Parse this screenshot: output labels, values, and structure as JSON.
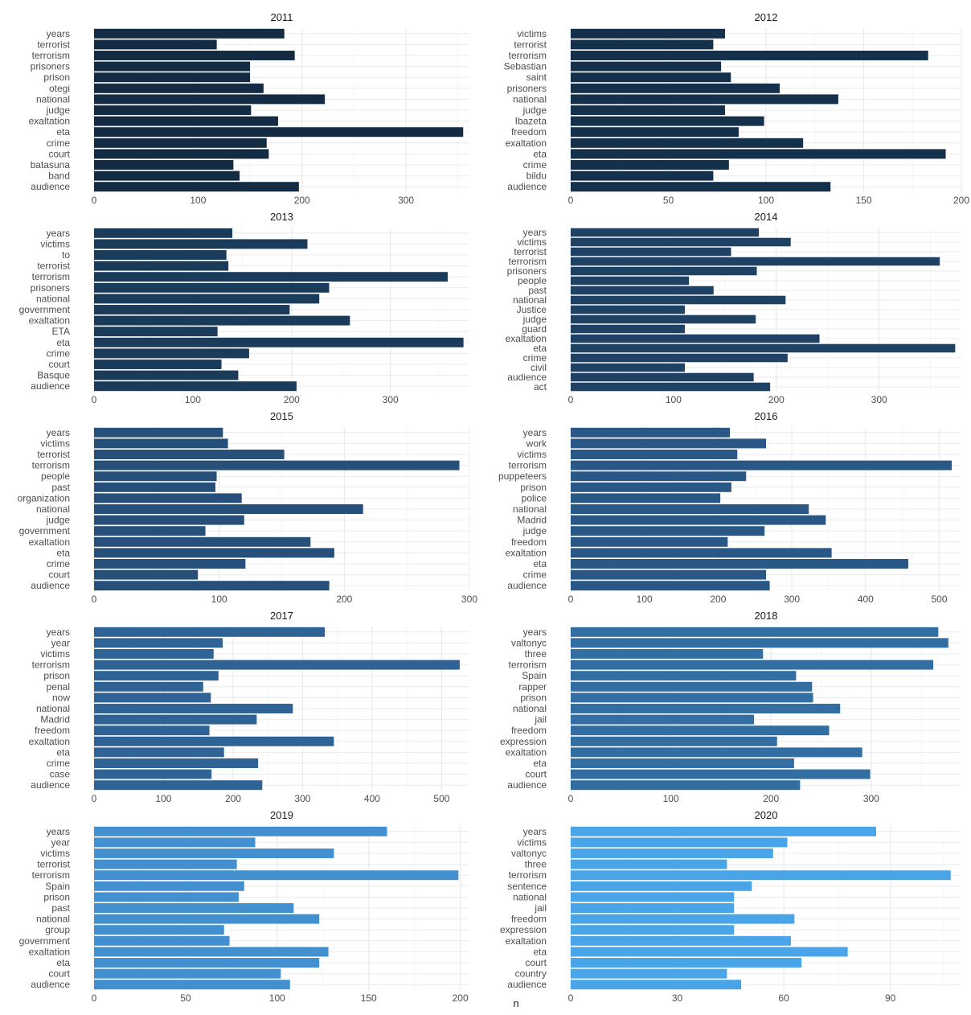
{
  "chart_data": {
    "type": "bar",
    "orientation": "horizontal",
    "layout": "facet grid, 2 columns x 5 rows",
    "xlabel": "n",
    "ylabel": "",
    "grid": true,
    "legend": "none",
    "colors": [
      "#132b43",
      "#15304a",
      "#183552",
      "#1b3b5a",
      "#1e4164",
      "#21476e",
      "#264f79",
      "#2a5886",
      "#2f6395",
      "#336ea3",
      "#3879b2",
      "#3d85c1",
      "#4290cf",
      "#469bdc",
      "#4aa5e8",
      "#4fb0f3",
      "#53b8fb",
      "#56b1f7"
    ],
    "panels": [
      {
        "title": "2011",
        "categories": [
          "years",
          "terrorist",
          "terrorism",
          "prisoners",
          "prison",
          "otegi",
          "national",
          "judge",
          "exaltation",
          "eta",
          "crime",
          "court",
          "batasuna",
          "band",
          "audience"
        ],
        "values": [
          183,
          118,
          193,
          150,
          150,
          163,
          222,
          151,
          177,
          355,
          166,
          168,
          134,
          140,
          197
        ],
        "xlim": [
          0,
          361
        ],
        "ticks": [
          0,
          100,
          200,
          300
        ],
        "color": "#132b43"
      },
      {
        "title": "2012",
        "categories": [
          "victims",
          "terrorist",
          "terrorism",
          "Sebastian",
          "saint",
          "prisoners",
          "national",
          "judge",
          "Ibazeta",
          "freedom",
          "exaltation",
          "eta",
          "crime",
          "bildu",
          "audience"
        ],
        "values": [
          79,
          73,
          183,
          77,
          82,
          107,
          137,
          79,
          99,
          86,
          119,
          192,
          81,
          73,
          133
        ],
        "xlim": [
          0,
          200
        ],
        "ticks": [
          0,
          50,
          100,
          150,
          200
        ],
        "color": "#15304a"
      },
      {
        "title": "2013",
        "categories": [
          "years",
          "victims",
          "to",
          "terrorist",
          "terrorism",
          "prisoners",
          "national",
          "government",
          "exaltation",
          "ETA",
          "eta",
          "crime",
          "court",
          "Basque",
          "audience"
        ],
        "values": [
          140,
          216,
          134,
          136,
          358,
          238,
          228,
          198,
          259,
          125,
          374,
          157,
          129,
          146,
          205
        ],
        "xlim": [
          0,
          380
        ],
        "ticks": [
          0,
          100,
          200,
          300
        ],
        "color": "#1b3b5a"
      },
      {
        "title": "2014",
        "categories": [
          "years",
          "victims",
          "terrorist",
          "terrorism",
          "prisoners",
          "people",
          "past",
          "national",
          "Justice",
          "judge",
          "guard",
          "exaltation",
          "eta",
          "crime",
          "civil",
          "audience",
          "act"
        ],
        "values": [
          183,
          214,
          156,
          359,
          181,
          115,
          139,
          209,
          111,
          180,
          111,
          242,
          374,
          211,
          111,
          178,
          194
        ],
        "xlim": [
          0,
          380
        ],
        "ticks": [
          0,
          100,
          200,
          300
        ],
        "color": "#1e4164"
      },
      {
        "title": "2015",
        "categories": [
          "years",
          "victims",
          "terrorist",
          "terrorism",
          "people",
          "past",
          "organization",
          "national",
          "judge",
          "government",
          "exaltation",
          "eta",
          "crime",
          "court",
          "audience"
        ],
        "values": [
          103,
          107,
          152,
          292,
          98,
          97,
          118,
          215,
          120,
          89,
          173,
          192,
          121,
          83,
          188
        ],
        "xlim": [
          0,
          300
        ],
        "ticks": [
          0,
          100,
          200,
          300
        ],
        "color": "#264f79"
      },
      {
        "title": "2016",
        "categories": [
          "years",
          "work",
          "victims",
          "terrorism",
          "puppeteers",
          "prison",
          "police",
          "national",
          "Madrid",
          "judge",
          "freedom",
          "exaltation",
          "eta",
          "crime",
          "audience"
        ],
        "values": [
          216,
          265,
          226,
          517,
          238,
          218,
          203,
          323,
          346,
          263,
          213,
          354,
          458,
          265,
          270
        ],
        "xlim": [
          0,
          530
        ],
        "ticks": [
          0,
          100,
          200,
          300,
          400,
          500
        ],
        "color": "#2a5886"
      },
      {
        "title": "2017",
        "categories": [
          "years",
          "year",
          "victims",
          "terrorism",
          "prison",
          "penal",
          "now",
          "national",
          "Madrid",
          "freedom",
          "exaltation",
          "eta",
          "crime",
          "case",
          "audience"
        ],
        "values": [
          332,
          185,
          172,
          526,
          179,
          157,
          168,
          286,
          234,
          166,
          345,
          187,
          236,
          169,
          242
        ],
        "xlim": [
          0,
          540
        ],
        "ticks": [
          0,
          100,
          200,
          300,
          400,
          500
        ],
        "color": "#2f6395"
      },
      {
        "title": "2018",
        "categories": [
          "years",
          "valtonyc",
          "three",
          "terrorism",
          "Spain",
          "rapper",
          "prison",
          "national",
          "jail",
          "freedom",
          "expression",
          "exaltation",
          "eta",
          "court",
          "audience"
        ],
        "values": [
          367,
          377,
          192,
          362,
          225,
          241,
          242,
          269,
          183,
          258,
          206,
          291,
          223,
          299,
          229
        ],
        "xlim": [
          0,
          390
        ],
        "ticks": [
          0,
          100,
          200,
          300
        ],
        "color": "#336ea3"
      },
      {
        "title": "2019",
        "categories": [
          "years",
          "year",
          "victims",
          "terrorist",
          "terrorism",
          "Spain",
          "prison",
          "past",
          "national",
          "group",
          "government",
          "exaltation",
          "eta",
          "court",
          "audience"
        ],
        "values": [
          160,
          88,
          131,
          78,
          199,
          82,
          79,
          109,
          123,
          71,
          74,
          128,
          123,
          102,
          107
        ],
        "xlim": [
          0,
          205
        ],
        "ticks": [
          0,
          50,
          100,
          150,
          200
        ],
        "color": "#4290cf"
      },
      {
        "title": "2020",
        "categories": [
          "years",
          "victims",
          "valtonyc",
          "three",
          "terrorism",
          "sentence",
          "national",
          "jail",
          "freedom",
          "expression",
          "exaltation",
          "eta",
          "court",
          "country",
          "audience"
        ],
        "values": [
          86,
          61,
          57,
          44,
          107,
          51,
          46,
          46,
          63,
          46,
          62,
          78,
          65,
          44,
          48
        ],
        "xlim": [
          0,
          110
        ],
        "ticks": [
          0,
          30,
          60,
          90
        ],
        "color": "#4aa5e8"
      }
    ]
  }
}
